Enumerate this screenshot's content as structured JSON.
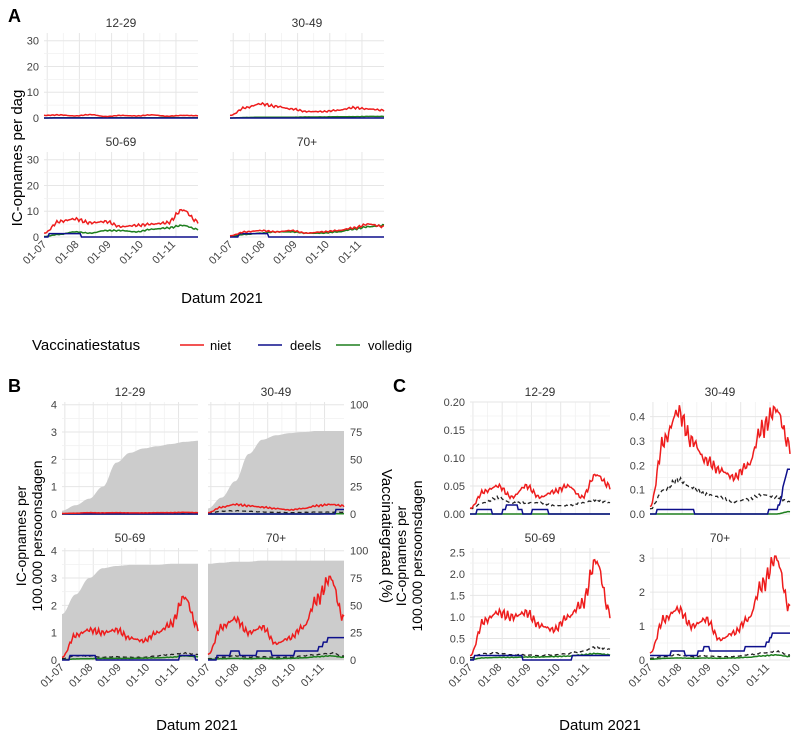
{
  "panel_labels": {
    "a": "A",
    "b": "B",
    "c": "C"
  },
  "legend": {
    "title": "Vaccinatiestatus",
    "entries": [
      {
        "name": "niet",
        "color": "#ee1c1c"
      },
      {
        "name": "deels",
        "color": "#0d0f8c"
      },
      {
        "name": "volledig",
        "color": "#1e7f1e"
      }
    ]
  },
  "x_ticks": [
    "01-07",
    "01-08",
    "01-09",
    "01-10",
    "01-11"
  ],
  "colors": {
    "niet": "#ee1c1c",
    "deels": "#0d0f8c",
    "volledig": "#1e7f1e",
    "unvax_dashed": "#222222",
    "coverage_fill": "#cccccc",
    "grid": "#e6e6e6"
  },
  "chart_data": [
    {
      "id": "A",
      "type": "line",
      "title": "",
      "xlabel": "Datum 2021",
      "ylabel": "IC-opnames per dag",
      "ylim": [
        0,
        33
      ],
      "yticks": [
        0,
        10,
        20,
        30
      ],
      "facets": [
        {
          "label": "12-29",
          "series": {
            "niet": [
              1.0,
              1.2,
              0.8,
              1.3,
              0.6,
              1.0,
              0.8,
              1.2,
              0.7,
              1.0,
              0.9
            ],
            "deels": [
              0.2,
              0.2,
              0.1,
              0.2,
              0.1,
              0.1,
              0.1,
              0.2,
              0.1,
              0.1,
              0.1
            ],
            "volledig": [
              0,
              0.1,
              0.1,
              0.1,
              0.1,
              0.1,
              0.1,
              0.1,
              0.2,
              0.1,
              0.1
            ]
          }
        },
        {
          "label": "30-49",
          "series": {
            "niet": [
              1.0,
              4.0,
              5.5,
              4.5,
              3.5,
              2.5,
              2.5,
              3.0,
              4.0,
              3.5,
              3.0
            ],
            "deels": [
              0.3,
              0.6,
              0.5,
              0.3,
              0.2,
              0.2,
              0.1,
              0.1,
              0.1,
              0.1,
              0.1
            ],
            "volledig": [
              0,
              0.2,
              0.3,
              0.3,
              0.3,
              0.4,
              0.4,
              0.5,
              0.5,
              0.6,
              0.6
            ]
          }
        },
        {
          "label": "50-69",
          "series": {
            "niet": [
              1.5,
              6.0,
              7.0,
              5.5,
              6.0,
              4.0,
              4.5,
              5.0,
              5.5,
              10.5,
              6.0
            ],
            "deels": [
              0.5,
              1.5,
              0.8,
              0.4,
              0.3,
              0.3,
              0.2,
              0.2,
              0.2,
              0.2,
              0.1
            ],
            "volledig": [
              0.2,
              1.0,
              2.0,
              1.5,
              2.5,
              2.5,
              2.0,
              3.0,
              3.5,
              4.5,
              3.0
            ]
          }
        },
        {
          "label": "70+",
          "series": {
            "niet": [
              0.5,
              2.0,
              2.5,
              2.0,
              2.5,
              1.5,
              2.0,
              2.5,
              3.5,
              5.0,
              4.0
            ],
            "deels": [
              0.3,
              1.0,
              0.8,
              0.5,
              0.5,
              0.4,
              0.3,
              0.3,
              0.4,
              0.5,
              0.5
            ],
            "volledig": [
              0.2,
              1.0,
              1.5,
              2.0,
              2.0,
              1.5,
              1.5,
              2.0,
              3.0,
              4.0,
              4.5
            ]
          }
        }
      ]
    },
    {
      "id": "B",
      "type": "line+area",
      "xlabel": "Datum 2021",
      "ylabel": "IC-opnames per\n100.000 persoonsdagen",
      "ylabel_right": "Vaccinatiegraad (%)",
      "ylim": [
        0,
        4.1
      ],
      "yticks": [
        0,
        1,
        2,
        3,
        4
      ],
      "ylim_right": [
        0,
        102.5
      ],
      "yticks_right": [
        0,
        25,
        50,
        75,
        100
      ],
      "facets": [
        {
          "label": "12-29",
          "coverage_pct": [
            3,
            8,
            14,
            25,
            47,
            56,
            60,
            62,
            64,
            66,
            67
          ],
          "series": {
            "niet": [
              0.02,
              0.03,
              0.05,
              0.04,
              0.05,
              0.04,
              0.04,
              0.05,
              0.05,
              0.06,
              0.05
            ],
            "deels": [
              0.01,
              0.01,
              0.02,
              0.01,
              0.01,
              0.01,
              0.01,
              0.01,
              0.01,
              0.01,
              0.01
            ],
            "volledig": [
              0,
              0,
              0,
              0,
              0,
              0,
              0,
              0,
              0,
              0,
              0
            ],
            "dashed": [
              0.01,
              0.02,
              0.02,
              0.02,
              0.02,
              0.02,
              0.02,
              0.02,
              0.02,
              0.02,
              0.02
            ]
          }
        },
        {
          "label": "30-49",
          "coverage_pct": [
            5,
            15,
            30,
            55,
            68,
            72,
            74,
            75,
            76,
            76,
            76
          ],
          "series": {
            "niet": [
              0.05,
              0.25,
              0.35,
              0.3,
              0.25,
              0.2,
              0.15,
              0.2,
              0.3,
              0.35,
              0.3
            ],
            "deels": [
              0.01,
              0.03,
              0.02,
              0.02,
              0.01,
              0.01,
              0.01,
              0.01,
              0.02,
              0.05,
              0.15
            ],
            "volledig": [
              0,
              0,
              0,
              0,
              0,
              0,
              0,
              0,
              0,
              0.01,
              0.01
            ],
            "dashed": [
              0.02,
              0.1,
              0.12,
              0.1,
              0.07,
              0.06,
              0.05,
              0.06,
              0.07,
              0.07,
              0.06
            ]
          }
        },
        {
          "label": "50-69",
          "coverage_pct": [
            42,
            60,
            75,
            84,
            86,
            87,
            87,
            87,
            88,
            88,
            88
          ],
          "series": {
            "niet": [
              0.1,
              0.9,
              1.1,
              1.0,
              1.1,
              0.8,
              0.7,
              1.0,
              1.3,
              2.3,
              1.2
            ],
            "deels": [
              0.02,
              0.12,
              0.1,
              0.06,
              0.04,
              0.03,
              0.04,
              0.05,
              0.05,
              0.1,
              0.08
            ],
            "volledig": [
              0.01,
              0.04,
              0.05,
              0.06,
              0.06,
              0.06,
              0.07,
              0.08,
              0.1,
              0.15,
              0.12
            ],
            "dashed": [
              0.05,
              0.15,
              0.15,
              0.1,
              0.12,
              0.1,
              0.1,
              0.15,
              0.2,
              0.25,
              0.2
            ]
          }
        },
        {
          "label": "70+",
          "coverage_pct": [
            88,
            89,
            90,
            90,
            91,
            91,
            91,
            91,
            91,
            91,
            91
          ],
          "series": {
            "niet": [
              0.2,
              1.2,
              1.5,
              1.0,
              1.2,
              0.6,
              0.8,
              1.2,
              2.2,
              3.0,
              1.5
            ],
            "deels": [
              0.05,
              0.1,
              0.3,
              0.1,
              0.35,
              0.2,
              0.2,
              0.35,
              0.4,
              0.8,
              0.8
            ],
            "volledig": [
              0.02,
              0.05,
              0.06,
              0.05,
              0.06,
              0.05,
              0.06,
              0.08,
              0.12,
              0.15,
              0.1
            ],
            "dashed": [
              0.05,
              0.1,
              0.15,
              0.1,
              0.12,
              0.1,
              0.1,
              0.15,
              0.2,
              0.25,
              0.15
            ]
          }
        }
      ]
    },
    {
      "id": "C",
      "type": "line",
      "xlabel": "Datum 2021",
      "ylabel": "IC-opnames per\n100.000 persoonsdagen",
      "facets": [
        {
          "label": "12-29",
          "ylim": [
            0,
            0.2
          ],
          "yticks": [
            "0.00",
            "0.05",
            "0.10",
            "0.15",
            "0.20"
          ],
          "series": {
            "niet": [
              0.01,
              0.04,
              0.05,
              0.03,
              0.05,
              0.03,
              0.04,
              0.05,
              0.03,
              0.07,
              0.05
            ],
            "deels": [
              0.0,
              0.01,
              0.0,
              0.02,
              0.0,
              0.01,
              0.0,
              0.0,
              0.0,
              0.0,
              0.0
            ],
            "volledig": [
              0,
              0,
              0,
              0,
              0,
              0,
              0,
              0,
              0,
              0,
              0
            ],
            "dashed": [
              0.01,
              0.02,
              0.03,
              0.02,
              0.02,
              0.02,
              0.015,
              0.015,
              0.02,
              0.025,
              0.02
            ]
          }
        },
        {
          "label": "30-49",
          "ylim": [
            0,
            0.46
          ],
          "yticks": [
            "0.0",
            "0.1",
            "0.2",
            "0.3",
            "0.4"
          ],
          "series": {
            "niet": [
              0.03,
              0.3,
              0.42,
              0.3,
              0.22,
              0.18,
              0.15,
              0.2,
              0.35,
              0.43,
              0.28
            ],
            "deels": [
              0.0,
              0.02,
              0.01,
              0.01,
              0.0,
              0.0,
              0.0,
              0.0,
              0.0,
              0.02,
              0.19
            ],
            "volledig": [
              0,
              0,
              0,
              0,
              0,
              0,
              0,
              0,
              0,
              0,
              0.01
            ],
            "dashed": [
              0.02,
              0.1,
              0.14,
              0.11,
              0.08,
              0.07,
              0.05,
              0.06,
              0.08,
              0.07,
              0.05
            ]
          }
        },
        {
          "label": "50-69",
          "ylim": [
            0,
            2.6
          ],
          "yticks": [
            "0.0",
            "0.5",
            "1.0",
            "1.5",
            "2.0",
            "2.5"
          ],
          "series": {
            "niet": [
              0.1,
              0.9,
              1.1,
              1.0,
              1.1,
              0.8,
              0.7,
              1.0,
              1.3,
              2.3,
              1.1
            ],
            "deels": [
              0.02,
              0.15,
              0.1,
              0.06,
              0.05,
              0.04,
              0.05,
              0.05,
              0.06,
              0.12,
              0.1
            ],
            "volledig": [
              0.01,
              0.05,
              0.06,
              0.06,
              0.07,
              0.07,
              0.08,
              0.09,
              0.12,
              0.15,
              0.12
            ],
            "dashed": [
              0.05,
              0.15,
              0.16,
              0.12,
              0.12,
              0.1,
              0.12,
              0.15,
              0.2,
              0.3,
              0.25
            ]
          }
        },
        {
          "label": "70+",
          "ylim": [
            0,
            3.3
          ],
          "yticks": [
            "0",
            "1",
            "2",
            "3"
          ],
          "series": {
            "niet": [
              0.2,
              1.2,
              1.5,
              1.0,
              1.2,
              0.6,
              0.8,
              1.2,
              2.2,
              3.0,
              1.5
            ],
            "deels": [
              0.1,
              0.1,
              0.3,
              0.1,
              0.35,
              0.2,
              0.2,
              0.35,
              0.4,
              0.8,
              0.8
            ],
            "volledig": [
              0.02,
              0.05,
              0.06,
              0.05,
              0.06,
              0.05,
              0.06,
              0.08,
              0.12,
              0.15,
              0.1
            ],
            "dashed": [
              0.05,
              0.1,
              0.15,
              0.1,
              0.12,
              0.1,
              0.1,
              0.15,
              0.2,
              0.25,
              0.15
            ]
          }
        }
      ]
    }
  ]
}
